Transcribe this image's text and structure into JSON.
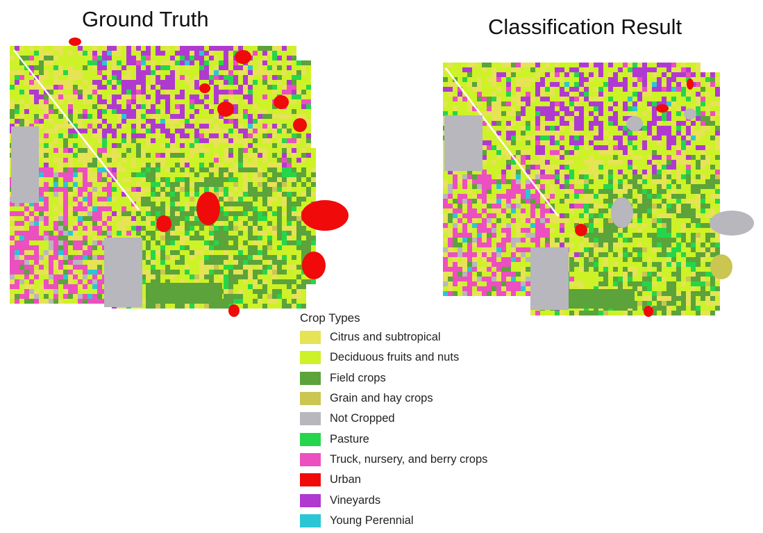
{
  "titles": {
    "left": "Ground Truth",
    "right": "Classification Result"
  },
  "legend": {
    "title": "Crop Types",
    "items": [
      {
        "label": "Citrus and subtropical",
        "color": "#e6e356"
      },
      {
        "label": "Deciduous fruits and nuts",
        "color": "#cdf227"
      },
      {
        "label": "Field crops",
        "color": "#5ba33a"
      },
      {
        "label": "Grain and hay crops",
        "color": "#cbc552"
      },
      {
        "label": "Not Cropped",
        "color": "#b7b7bd"
      },
      {
        "label": "Pasture",
        "color": "#25d64a"
      },
      {
        "label": "Truck, nursery, and berry crops",
        "color": "#ec4fbf"
      },
      {
        "label": "Urban",
        "color": "#f00a0a"
      },
      {
        "label": "Vineyards",
        "color": "#b03ad0"
      },
      {
        "label": "Young Perennial",
        "color": "#2bc6d6"
      }
    ]
  }
}
